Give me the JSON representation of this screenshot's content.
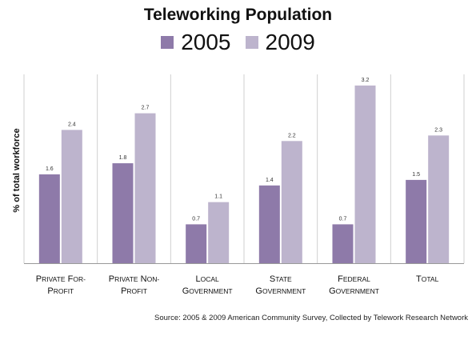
{
  "chart_data": {
    "type": "bar",
    "title": "Teleworking Population",
    "ylabel": "% of total workforce",
    "xlabel": "",
    "categories": [
      [
        "Private For-",
        "Profit"
      ],
      [
        "Private Non-",
        "Profit"
      ],
      [
        "Local",
        "Government"
      ],
      [
        "State",
        "Government"
      ],
      [
        "Federal",
        "Government"
      ],
      [
        "Total"
      ]
    ],
    "series": [
      {
        "name": "2005",
        "color": "#8e7aa9",
        "values": [
          1.6,
          1.8,
          0.7,
          1.4,
          0.7,
          1.5
        ]
      },
      {
        "name": "2009",
        "color": "#bdb4cd",
        "values": [
          2.4,
          2.7,
          1.1,
          2.2,
          3.2,
          2.3
        ]
      }
    ],
    "ylim": [
      0,
      3.4
    ],
    "grid": false,
    "legend_position": "top-center",
    "source": "Source: 2005 & 2009 American Community Survey, Collected by Telework Research Network"
  }
}
